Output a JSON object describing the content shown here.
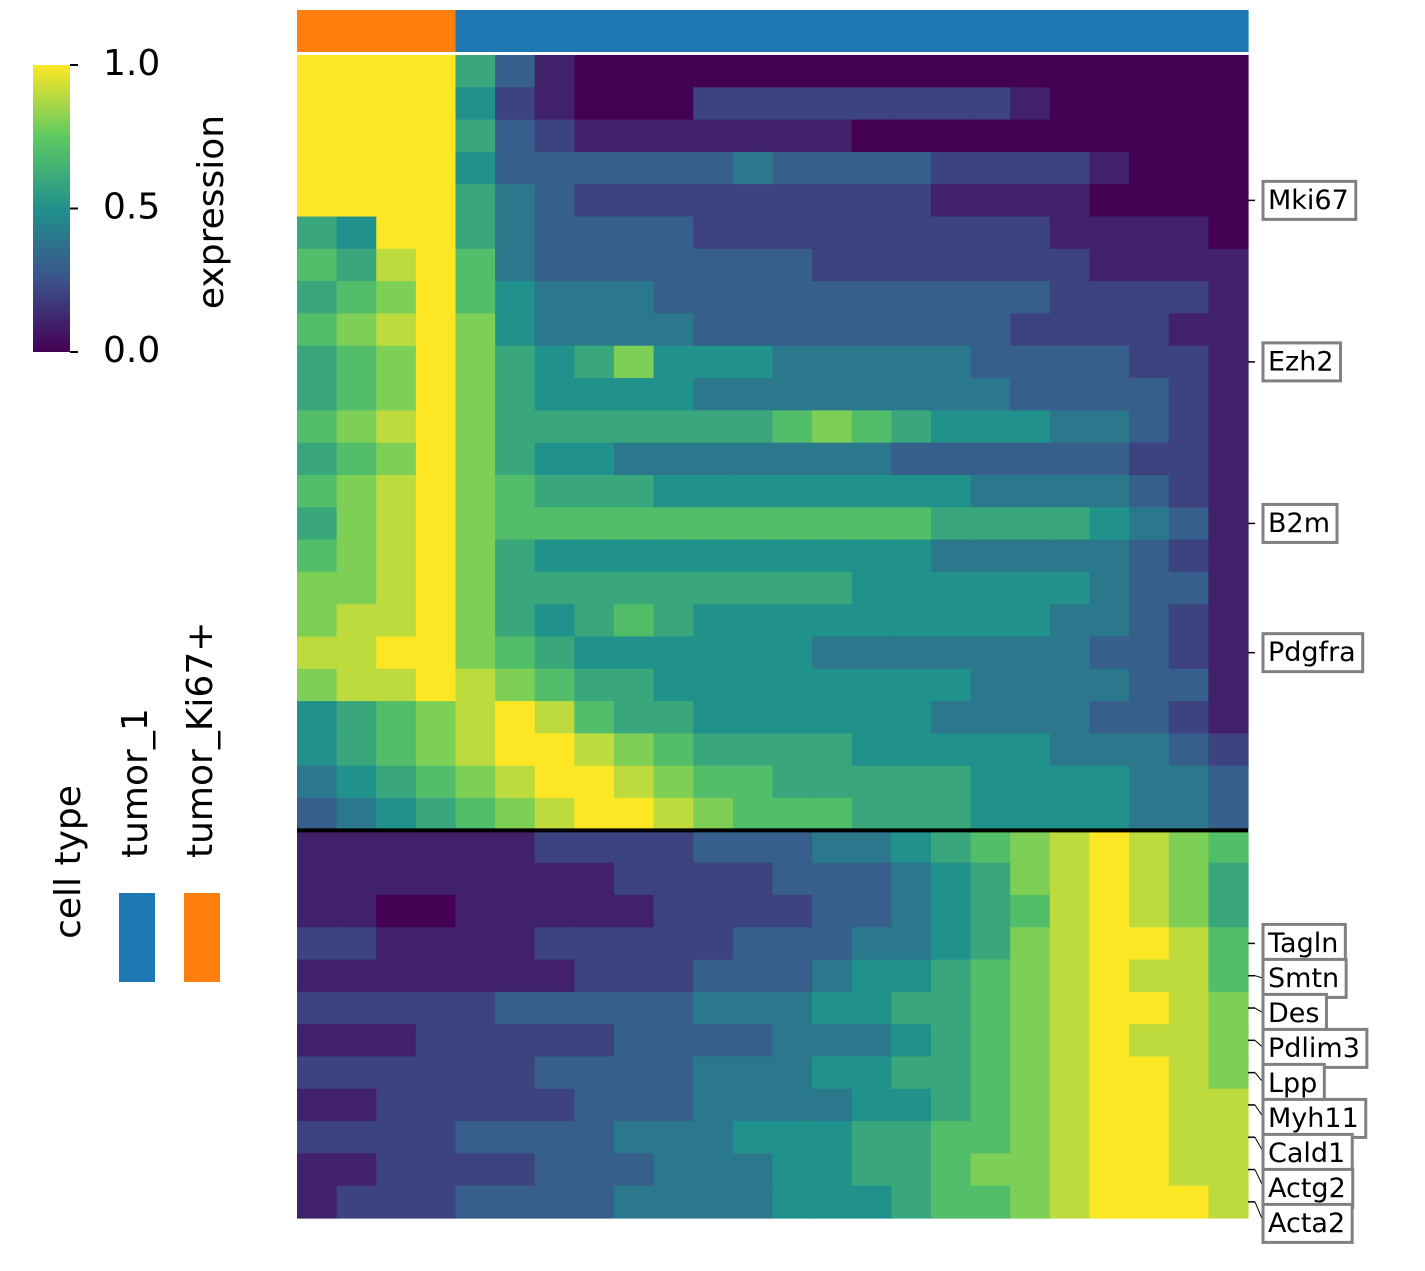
{
  "chart_data": {
    "type": "heatmap",
    "colormap": "viridis",
    "colorbar": {
      "label": "expression",
      "lim": [
        0,
        1
      ],
      "ticks": [
        {
          "value": 0,
          "label": "0.0"
        },
        {
          "value": 0.5,
          "label": "0.5"
        },
        {
          "value": 1,
          "label": "1.0"
        }
      ]
    },
    "legend": {
      "title": "cell type",
      "items": [
        {
          "name": "tumor_1",
          "color": "#1f77b4"
        },
        {
          "name": "tumor_Ki67+",
          "color": "#ff7f0e"
        }
      ]
    },
    "column_groups": [
      1,
      1,
      1,
      1,
      0,
      0,
      0,
      0,
      0,
      0,
      0,
      0,
      0,
      0,
      0,
      0,
      0,
      0,
      0,
      0,
      0,
      0,
      0,
      0
    ],
    "rows": [
      null,
      null,
      null,
      null,
      "Mki67",
      null,
      null,
      null,
      null,
      "Ezh2",
      null,
      null,
      null,
      null,
      "B2m",
      null,
      null,
      null,
      "Pdgfra",
      null,
      null,
      null,
      null,
      null,
      null,
      null,
      null,
      "Tagln",
      "Smtn",
      "Des",
      "Pdlim3",
      "Lpp",
      "Myh11",
      "Cald1",
      "Actg2",
      "Acta2"
    ],
    "values": [
      [
        1,
        1,
        1,
        1,
        0.6,
        0.3,
        0.1,
        0,
        0,
        0,
        0,
        0,
        0,
        0,
        0,
        0,
        0,
        0,
        0,
        0,
        0,
        0,
        0,
        0
      ],
      [
        1,
        1,
        1,
        1,
        0.5,
        0.2,
        0.1,
        0,
        0,
        0,
        0.2,
        0.2,
        0.2,
        0.2,
        0.2,
        0.2,
        0.2,
        0.2,
        0.1,
        0,
        0,
        0,
        0,
        0
      ],
      [
        1,
        1,
        1,
        1,
        0.6,
        0.3,
        0.2,
        0.1,
        0.1,
        0.1,
        0.1,
        0.1,
        0.1,
        0.1,
        0,
        0,
        0,
        0,
        0,
        0,
        0,
        0,
        0,
        0
      ],
      [
        1,
        1,
        1,
        1,
        0.5,
        0.3,
        0.3,
        0.3,
        0.3,
        0.3,
        0.3,
        0.4,
        0.3,
        0.3,
        0.3,
        0.3,
        0.2,
        0.2,
        0.2,
        0.2,
        0.1,
        0,
        0,
        0
      ],
      [
        1,
        1,
        1,
        1,
        0.6,
        0.4,
        0.3,
        0.2,
        0.2,
        0.2,
        0.2,
        0.2,
        0.2,
        0.2,
        0.2,
        0.2,
        0.1,
        0.1,
        0.1,
        0.1,
        0,
        0,
        0,
        0
      ],
      [
        0.6,
        0.5,
        1,
        1,
        0.6,
        0.4,
        0.3,
        0.3,
        0.3,
        0.3,
        0.2,
        0.2,
        0.2,
        0.2,
        0.2,
        0.2,
        0.2,
        0.2,
        0.2,
        0.1,
        0.1,
        0.1,
        0.1,
        0
      ],
      [
        0.7,
        0.6,
        0.9,
        1,
        0.7,
        0.4,
        0.3,
        0.3,
        0.3,
        0.3,
        0.3,
        0.3,
        0.3,
        0.2,
        0.2,
        0.2,
        0.2,
        0.2,
        0.2,
        0.2,
        0.1,
        0.1,
        0.1,
        0.1
      ],
      [
        0.6,
        0.7,
        0.8,
        1,
        0.7,
        0.5,
        0.4,
        0.4,
        0.4,
        0.3,
        0.3,
        0.3,
        0.3,
        0.3,
        0.3,
        0.3,
        0.3,
        0.3,
        0.3,
        0.2,
        0.2,
        0.2,
        0.2,
        0.1
      ],
      [
        0.7,
        0.8,
        0.9,
        1,
        0.8,
        0.5,
        0.4,
        0.4,
        0.4,
        0.4,
        0.3,
        0.3,
        0.3,
        0.3,
        0.3,
        0.3,
        0.3,
        0.3,
        0.2,
        0.2,
        0.2,
        0.2,
        0.1,
        0.1
      ],
      [
        0.6,
        0.7,
        0.8,
        1,
        0.8,
        0.6,
        0.5,
        0.6,
        0.8,
        0.5,
        0.5,
        0.5,
        0.4,
        0.4,
        0.4,
        0.4,
        0.4,
        0.3,
        0.3,
        0.3,
        0.3,
        0.2,
        0.2,
        0.1
      ],
      [
        0.6,
        0.7,
        0.8,
        1,
        0.8,
        0.6,
        0.5,
        0.5,
        0.5,
        0.5,
        0.4,
        0.4,
        0.4,
        0.4,
        0.4,
        0.4,
        0.4,
        0.4,
        0.3,
        0.3,
        0.3,
        0.3,
        0.2,
        0.1
      ],
      [
        0.7,
        0.8,
        0.9,
        1,
        0.8,
        0.6,
        0.6,
        0.6,
        0.6,
        0.6,
        0.6,
        0.6,
        0.7,
        0.8,
        0.7,
        0.6,
        0.5,
        0.5,
        0.5,
        0.4,
        0.4,
        0.3,
        0.2,
        0.1
      ],
      [
        0.6,
        0.7,
        0.8,
        1,
        0.8,
        0.6,
        0.5,
        0.5,
        0.4,
        0.4,
        0.4,
        0.4,
        0.4,
        0.4,
        0.4,
        0.3,
        0.3,
        0.3,
        0.3,
        0.3,
        0.3,
        0.2,
        0.2,
        0.1
      ],
      [
        0.7,
        0.8,
        0.9,
        1,
        0.8,
        0.7,
        0.6,
        0.6,
        0.6,
        0.5,
        0.5,
        0.5,
        0.5,
        0.5,
        0.5,
        0.5,
        0.5,
        0.4,
        0.4,
        0.4,
        0.4,
        0.3,
        0.2,
        0.1
      ],
      [
        0.6,
        0.8,
        0.9,
        1,
        0.8,
        0.7,
        0.7,
        0.7,
        0.7,
        0.7,
        0.7,
        0.7,
        0.7,
        0.7,
        0.7,
        0.7,
        0.6,
        0.6,
        0.6,
        0.6,
        0.5,
        0.4,
        0.3,
        0.1
      ],
      [
        0.7,
        0.8,
        0.9,
        1,
        0.8,
        0.6,
        0.5,
        0.5,
        0.5,
        0.5,
        0.5,
        0.5,
        0.5,
        0.5,
        0.5,
        0.5,
        0.4,
        0.4,
        0.4,
        0.4,
        0.4,
        0.3,
        0.2,
        0.1
      ],
      [
        0.8,
        0.8,
        0.9,
        1,
        0.8,
        0.6,
        0.6,
        0.6,
        0.6,
        0.6,
        0.6,
        0.6,
        0.6,
        0.6,
        0.5,
        0.5,
        0.5,
        0.5,
        0.5,
        0.5,
        0.4,
        0.3,
        0.3,
        0.1
      ],
      [
        0.8,
        0.9,
        0.9,
        1,
        0.8,
        0.6,
        0.5,
        0.6,
        0.7,
        0.6,
        0.5,
        0.5,
        0.5,
        0.5,
        0.5,
        0.5,
        0.5,
        0.5,
        0.5,
        0.4,
        0.4,
        0.3,
        0.2,
        0.1
      ],
      [
        0.9,
        0.9,
        1,
        1,
        0.8,
        0.7,
        0.6,
        0.5,
        0.5,
        0.5,
        0.5,
        0.5,
        0.5,
        0.4,
        0.4,
        0.4,
        0.4,
        0.4,
        0.4,
        0.4,
        0.3,
        0.3,
        0.2,
        0.1
      ],
      [
        0.8,
        0.9,
        0.9,
        1,
        0.9,
        0.8,
        0.7,
        0.6,
        0.6,
        0.5,
        0.5,
        0.5,
        0.5,
        0.5,
        0.5,
        0.5,
        0.5,
        0.4,
        0.4,
        0.4,
        0.4,
        0.3,
        0.3,
        0.1
      ],
      [
        0.5,
        0.6,
        0.7,
        0.8,
        0.9,
        1,
        0.9,
        0.7,
        0.6,
        0.6,
        0.5,
        0.5,
        0.5,
        0.5,
        0.5,
        0.5,
        0.4,
        0.4,
        0.4,
        0.4,
        0.3,
        0.3,
        0.2,
        0.1
      ],
      [
        0.5,
        0.6,
        0.7,
        0.8,
        0.9,
        1,
        1,
        0.9,
        0.8,
        0.7,
        0.6,
        0.6,
        0.6,
        0.6,
        0.5,
        0.5,
        0.5,
        0.5,
        0.5,
        0.4,
        0.4,
        0.4,
        0.3,
        0.2
      ],
      [
        0.4,
        0.5,
        0.6,
        0.7,
        0.8,
        0.9,
        1,
        1,
        0.9,
        0.8,
        0.7,
        0.7,
        0.6,
        0.6,
        0.6,
        0.6,
        0.6,
        0.5,
        0.5,
        0.5,
        0.5,
        0.4,
        0.4,
        0.3
      ],
      [
        0.3,
        0.4,
        0.5,
        0.6,
        0.7,
        0.8,
        0.9,
        1,
        1,
        0.9,
        0.8,
        0.7,
        0.7,
        0.7,
        0.6,
        0.6,
        0.6,
        0.5,
        0.5,
        0.5,
        0.5,
        0.4,
        0.4,
        0.3
      ],
      [
        0.1,
        0.1,
        0.1,
        0.1,
        0.1,
        0.1,
        0.2,
        0.2,
        0.2,
        0.2,
        0.3,
        0.3,
        0.3,
        0.4,
        0.4,
        0.5,
        0.6,
        0.7,
        0.8,
        0.9,
        1,
        0.9,
        0.8,
        0.7
      ],
      [
        0.1,
        0.1,
        0.1,
        0.1,
        0.1,
        0.1,
        0.1,
        0.1,
        0.2,
        0.2,
        0.2,
        0.2,
        0.3,
        0.3,
        0.3,
        0.4,
        0.5,
        0.6,
        0.8,
        0.9,
        1,
        0.9,
        0.8,
        0.6
      ],
      [
        0.1,
        0.1,
        0,
        0,
        0.1,
        0.1,
        0.1,
        0.1,
        0.1,
        0.2,
        0.2,
        0.2,
        0.2,
        0.3,
        0.3,
        0.4,
        0.5,
        0.6,
        0.7,
        0.9,
        1,
        0.9,
        0.8,
        0.6
      ],
      [
        0.2,
        0.2,
        0.1,
        0.1,
        0.1,
        0.1,
        0.2,
        0.2,
        0.2,
        0.2,
        0.2,
        0.3,
        0.3,
        0.3,
        0.4,
        0.4,
        0.5,
        0.6,
        0.8,
        0.9,
        1,
        1,
        0.9,
        0.7
      ],
      [
        0.1,
        0.1,
        0.1,
        0.1,
        0.1,
        0.1,
        0.1,
        0.2,
        0.2,
        0.2,
        0.3,
        0.3,
        0.3,
        0.4,
        0.5,
        0.5,
        0.6,
        0.7,
        0.8,
        0.9,
        1,
        0.9,
        0.9,
        0.7
      ],
      [
        0.2,
        0.2,
        0.2,
        0.2,
        0.2,
        0.3,
        0.3,
        0.3,
        0.3,
        0.3,
        0.4,
        0.4,
        0.4,
        0.5,
        0.5,
        0.6,
        0.6,
        0.7,
        0.8,
        0.9,
        1,
        1,
        0.9,
        0.8
      ],
      [
        0.1,
        0.1,
        0.1,
        0.2,
        0.2,
        0.2,
        0.2,
        0.2,
        0.3,
        0.3,
        0.3,
        0.3,
        0.4,
        0.4,
        0.4,
        0.5,
        0.6,
        0.7,
        0.8,
        0.9,
        1,
        0.9,
        0.9,
        0.8
      ],
      [
        0.2,
        0.2,
        0.2,
        0.2,
        0.2,
        0.2,
        0.3,
        0.3,
        0.3,
        0.3,
        0.4,
        0.4,
        0.4,
        0.5,
        0.5,
        0.6,
        0.6,
        0.7,
        0.8,
        0.9,
        1,
        1,
        0.9,
        0.8
      ],
      [
        0.1,
        0.1,
        0.2,
        0.2,
        0.2,
        0.2,
        0.2,
        0.3,
        0.3,
        0.3,
        0.4,
        0.4,
        0.4,
        0.4,
        0.5,
        0.5,
        0.6,
        0.7,
        0.8,
        0.9,
        1,
        1,
        0.9,
        0.9
      ],
      [
        0.2,
        0.2,
        0.2,
        0.2,
        0.3,
        0.3,
        0.3,
        0.3,
        0.4,
        0.4,
        0.4,
        0.5,
        0.5,
        0.5,
        0.6,
        0.6,
        0.7,
        0.7,
        0.8,
        0.9,
        1,
        1,
        0.9,
        0.9
      ],
      [
        0.1,
        0.1,
        0.2,
        0.2,
        0.2,
        0.2,
        0.3,
        0.3,
        0.3,
        0.4,
        0.4,
        0.4,
        0.5,
        0.5,
        0.6,
        0.6,
        0.7,
        0.8,
        0.8,
        0.9,
        1,
        1,
        0.9,
        0.9
      ],
      [
        0.1,
        0.2,
        0.2,
        0.2,
        0.3,
        0.3,
        0.3,
        0.3,
        0.4,
        0.4,
        0.4,
        0.4,
        0.5,
        0.5,
        0.5,
        0.6,
        0.7,
        0.7,
        0.8,
        0.9,
        1,
        1,
        1,
        0.9
      ]
    ]
  }
}
